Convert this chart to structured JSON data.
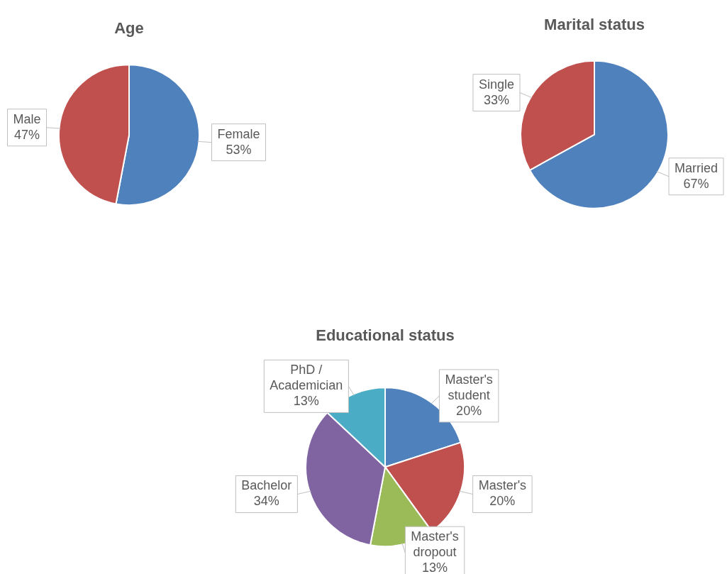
{
  "chart_data": [
    {
      "type": "pie",
      "title": "Age",
      "categories": [
        "Female",
        "Male"
      ],
      "values": [
        53,
        47
      ],
      "value_labels": [
        "53%",
        "47%"
      ],
      "colors": [
        "#4f81bd",
        "#c0504d"
      ]
    },
    {
      "type": "pie",
      "title": "Marital status",
      "categories": [
        "Married",
        "Single"
      ],
      "values": [
        67,
        33
      ],
      "value_labels": [
        "67%",
        "33%"
      ],
      "colors": [
        "#4f81bd",
        "#c0504d"
      ]
    },
    {
      "type": "pie",
      "title": "Educational status",
      "categories": [
        "Master's student",
        "Master's",
        "Master's dropout",
        "Bachelor",
        "PhD / Academician"
      ],
      "values": [
        20,
        20,
        13,
        34,
        13
      ],
      "value_labels": [
        "20%",
        "20%",
        "13%",
        "34%",
        "13%"
      ],
      "colors": [
        "#4f81bd",
        "#c0504d",
        "#9bbb59",
        "#8064a2",
        "#4bacc6"
      ]
    }
  ]
}
